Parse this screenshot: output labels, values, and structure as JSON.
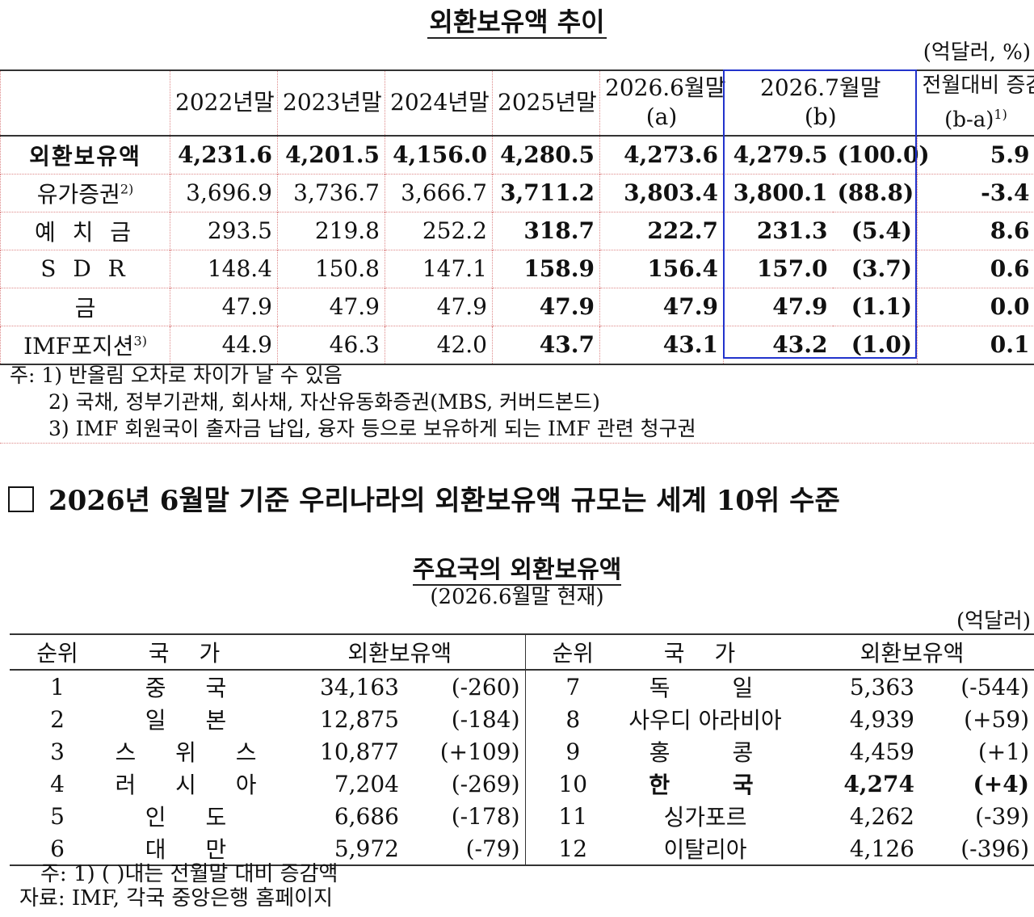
{
  "section1": {
    "title": "외환보유액 추이",
    "unit": "(억달러, %)",
    "headers": {
      "h2022": "2022년말",
      "h2023": "2023년말",
      "h2024": "2024년말",
      "h2025": "2025년말",
      "h2026_6_line1": "2026.6월말",
      "h2026_6_line2": "(a)",
      "h2026_7_line1": "2026.7월말",
      "h2026_7_line2": "(b)",
      "hdiff_line1": "전월대비 증감",
      "hdiff_line2": "(b-a)",
      "hdiff_sup": "1)"
    },
    "rows": [
      {
        "label": "외환보유액",
        "sup": "",
        "v2022": "4,231.6",
        "v2023": "4,201.5",
        "v2024": "4,156.0",
        "v2025": "4,280.5",
        "v2026_6": "4,273.6",
        "v2026_7": "4,279.5",
        "share": "(100.0)",
        "diff": "5.9"
      },
      {
        "label": "유가증권",
        "sup": "2)",
        "v2022": "3,696.9",
        "v2023": "3,736.7",
        "v2024": "3,666.7",
        "v2025": "3,711.2",
        "v2026_6": "3,803.4",
        "v2026_7": "3,800.1",
        "share": "(88.8)",
        "diff": "-3.4"
      },
      {
        "label": "예 치 금",
        "sup": "",
        "v2022": "293.5",
        "v2023": "219.8",
        "v2024": "252.2",
        "v2025": "318.7",
        "v2026_6": "222.7",
        "v2026_7": "231.3",
        "share": "(5.4)",
        "diff": "8.6"
      },
      {
        "label": "S D R",
        "sup": "",
        "v2022": "148.4",
        "v2023": "150.8",
        "v2024": "147.1",
        "v2025": "158.9",
        "v2026_6": "156.4",
        "v2026_7": "157.0",
        "share": "(3.7)",
        "diff": "0.6"
      },
      {
        "label": "금",
        "sup": "",
        "v2022": "47.9",
        "v2023": "47.9",
        "v2024": "47.9",
        "v2025": "47.9",
        "v2026_6": "47.9",
        "v2026_7": "47.9",
        "share": "(1.1)",
        "diff": "0.0"
      },
      {
        "label": "IMF포지션",
        "sup": "3)",
        "v2022": "44.9",
        "v2023": "46.3",
        "v2024": "42.0",
        "v2025": "43.7",
        "v2026_6": "43.1",
        "v2026_7": "43.2",
        "share": "(1.0)",
        "diff": "0.1"
      }
    ],
    "notes": {
      "n1": "주: 1) 반올림 오차로 차이가 날 수 있음",
      "n2": "2) 국채, 정부기관채, 회사채, 자산유동화증권(MBS, 커버드본드)",
      "n3": "3) IMF 회원국이 출자금 납입, 융자 등으로 보유하게 되는 IMF 관련 청구권"
    }
  },
  "headline": "2026년 6월말 기준 우리나라의 외환보유액 규모는 세계 10위 수준",
  "section2": {
    "title": "주요국의 외환보유액",
    "subtitle": "(2026.6월말 현재)",
    "unit": "(억달러)",
    "headers": {
      "rank": "순위",
      "country": "국 가",
      "reserves": "외환보유액"
    },
    "left": [
      {
        "rank": "1",
        "country": "중 국",
        "value": "34,163",
        "change": "(-260)"
      },
      {
        "rank": "2",
        "country": "일 본",
        "value": "12,875",
        "change": "(-184)"
      },
      {
        "rank": "3",
        "country": "스 위 스",
        "value": "10,877",
        "change": "(+109)"
      },
      {
        "rank": "4",
        "country": "러 시 아",
        "value": "7,204",
        "change": "(-269)"
      },
      {
        "rank": "5",
        "country": "인 도",
        "value": "6,686",
        "change": "(-178)"
      },
      {
        "rank": "6",
        "country": "대 만",
        "value": "5,972",
        "change": "(-79)"
      }
    ],
    "right": [
      {
        "rank": "7",
        "country": "독 일",
        "value": "5,363",
        "change": "(-544)"
      },
      {
        "rank": "8",
        "country": "사우디 아라비아",
        "value": "4,939",
        "change": "(+59)"
      },
      {
        "rank": "9",
        "country": "홍 콩",
        "value": "4,459",
        "change": "(+1)"
      },
      {
        "rank": "10",
        "country": "한 국",
        "value": "4,274",
        "change": "(+4)"
      },
      {
        "rank": "11",
        "country": "싱가포르",
        "value": "4,262",
        "change": "(-39)"
      },
      {
        "rank": "12",
        "country": "이탈리아",
        "value": "4,126",
        "change": "(-396)"
      }
    ],
    "notes": {
      "n1": "주: 1) (    )내는 전월말 대비 증감액",
      "source": "자료: IMF, 각국 중앙은행 홈페이지"
    }
  }
}
